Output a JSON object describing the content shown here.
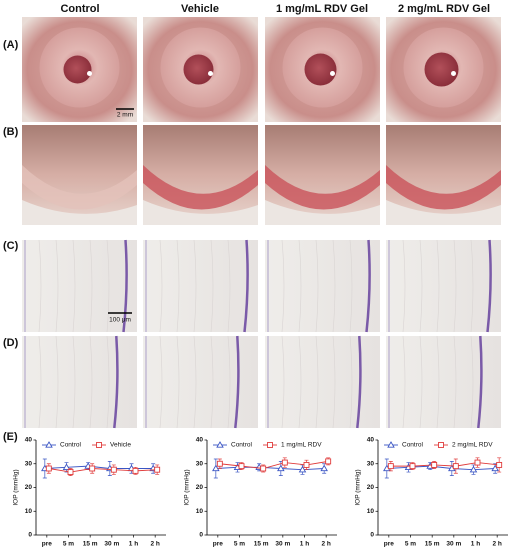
{
  "column_headers": [
    "Control",
    "Vehicle",
    "1 mg/mL RDV Gel",
    "2 mg/mL RDV Gel"
  ],
  "panel_labels": [
    "(A)",
    "(B)",
    "(C)",
    "(D)",
    "(E)"
  ],
  "scale_bars": [
    "2 mm",
    "100 μm"
  ],
  "chart_data": [
    {
      "type": "line",
      "y_label": "IOP (mmHg)",
      "categories": [
        "pre",
        "5 m",
        "15 m",
        "30 m",
        "1 h",
        "2 h"
      ],
      "ylim": [
        0,
        40
      ],
      "yticks": [
        0,
        10,
        20,
        30,
        40
      ],
      "series": [
        {
          "name": "Control",
          "color": "#3a55c4",
          "marker": "triangle",
          "values": [
            28,
            28.5,
            29,
            28,
            28,
            28
          ],
          "errors": [
            4,
            2,
            1.5,
            3,
            2,
            2
          ]
        },
        {
          "name": "Vehicle",
          "color": "#e03b3b",
          "marker": "square",
          "values": [
            28,
            26.5,
            28,
            27.5,
            27,
            27.5
          ],
          "errors": [
            2,
            1.5,
            2,
            2,
            1.5,
            2
          ]
        }
      ]
    },
    {
      "type": "line",
      "y_label": "IOP (mmHg)",
      "categories": [
        "pre",
        "5 m",
        "15 m",
        "30 m",
        "1 h",
        "2 h"
      ],
      "ylim": [
        0,
        40
      ],
      "yticks": [
        0,
        10,
        20,
        30,
        40
      ],
      "series": [
        {
          "name": "Control",
          "color": "#3a55c4",
          "marker": "triangle",
          "values": [
            28,
            28.5,
            28.5,
            28,
            27.5,
            28
          ],
          "errors": [
            4,
            2,
            1.5,
            3,
            2,
            2
          ]
        },
        {
          "name": "1 mg/mL RDV",
          "color": "#e03b3b",
          "marker": "square",
          "values": [
            30,
            29,
            28,
            30.5,
            29.5,
            31
          ],
          "errors": [
            2,
            1.5,
            1.5,
            2,
            2,
            1.5
          ]
        }
      ]
    },
    {
      "type": "line",
      "y_label": "IOP (mmHg)",
      "categories": [
        "pre",
        "5 m",
        "15 m",
        "30 m",
        "1 h",
        "2 h"
      ],
      "ylim": [
        0,
        40
      ],
      "yticks": [
        0,
        10,
        20,
        30,
        40
      ],
      "series": [
        {
          "name": "Control",
          "color": "#3a55c4",
          "marker": "triangle",
          "values": [
            28,
            28.5,
            29,
            28,
            27.5,
            28
          ],
          "errors": [
            4,
            2,
            1.5,
            3,
            2,
            2
          ]
        },
        {
          "name": "2 mg/mL RDV",
          "color": "#e03b3b",
          "marker": "square",
          "values": [
            29,
            29,
            29.5,
            29,
            30.5,
            29.5
          ],
          "errors": [
            2,
            1.5,
            1.5,
            3,
            2,
            3
          ]
        }
      ]
    }
  ]
}
